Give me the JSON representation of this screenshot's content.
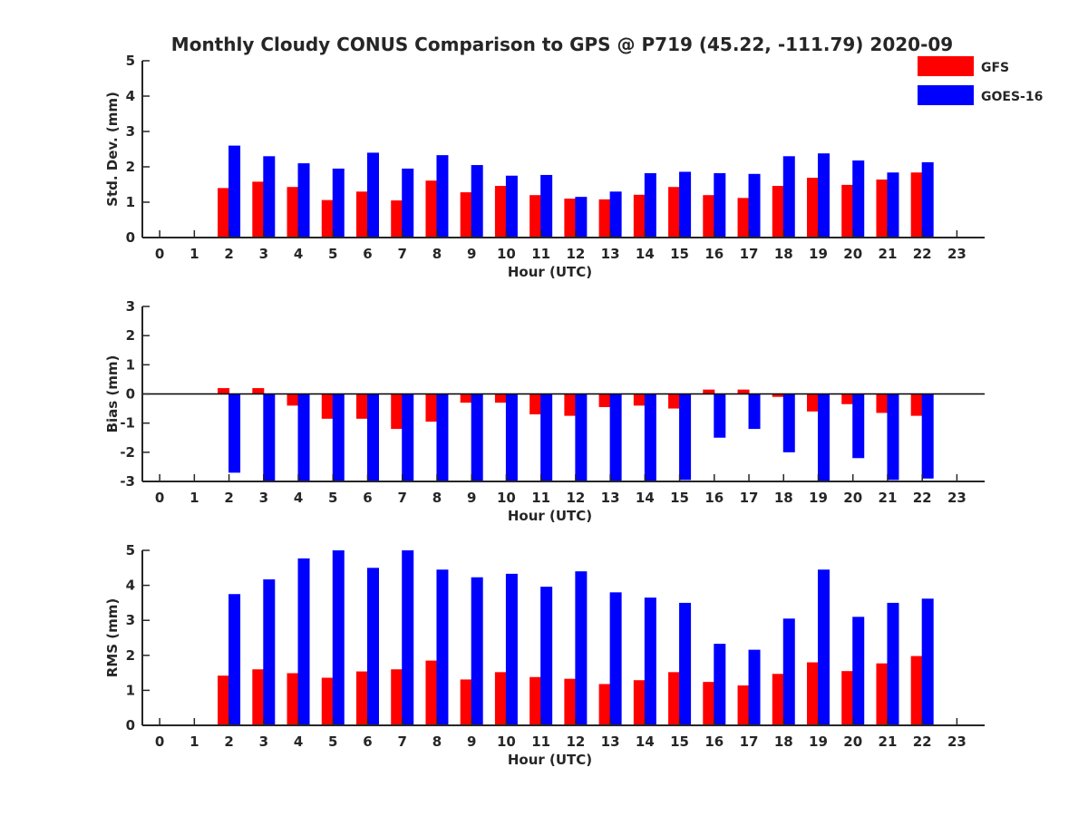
{
  "figure_title": "Monthly Cloudy CONUS Comparison to GPS @ P719 (45.22, -111.79) 2020-09",
  "colors": {
    "GFS": "#ff0000",
    "GOES-16": "#0000ff"
  },
  "legend": {
    "placement": "top-right",
    "entries": [
      "GFS",
      "GOES-16"
    ]
  },
  "chart_data": [
    {
      "type": "bar",
      "title": "Monthly Cloudy CONUS Comparison to GPS @ P719 (45.22, -111.79) 2020-09",
      "xlabel": "Hour (UTC)",
      "ylabel": "Std. Dev. (mm)",
      "ylim": [
        0,
        5
      ],
      "yticks": [
        0,
        1,
        2,
        3,
        4,
        5
      ],
      "xlim": [
        -0.5,
        23.8
      ],
      "categories": [
        0,
        1,
        2,
        3,
        4,
        5,
        6,
        7,
        8,
        9,
        10,
        11,
        12,
        13,
        14,
        15,
        16,
        17,
        18,
        19,
        20,
        21,
        22,
        23
      ],
      "grid": false,
      "zero_line": false,
      "series": [
        {
          "name": "GFS",
          "values": [
            null,
            null,
            1.4,
            1.58,
            1.43,
            1.06,
            1.3,
            1.05,
            1.61,
            1.28,
            1.46,
            1.2,
            1.1,
            1.08,
            1.21,
            1.43,
            1.2,
            1.12,
            1.46,
            1.69,
            1.49,
            1.64,
            1.84,
            null
          ]
        },
        {
          "name": "GOES-16",
          "values": [
            null,
            null,
            2.6,
            2.3,
            2.1,
            1.95,
            2.4,
            1.95,
            2.33,
            2.05,
            1.75,
            1.77,
            1.15,
            1.3,
            1.82,
            1.86,
            1.82,
            1.8,
            2.3,
            2.38,
            2.18,
            1.84,
            2.13,
            null
          ]
        }
      ]
    },
    {
      "type": "bar",
      "xlabel": "Hour (UTC)",
      "ylabel": "Bias (mm)",
      "ylim": [
        -3,
        3
      ],
      "yticks": [
        -3,
        -2,
        -1,
        0,
        1,
        2,
        3
      ],
      "xlim": [
        -0.5,
        23.8
      ],
      "categories": [
        0,
        1,
        2,
        3,
        4,
        5,
        6,
        7,
        8,
        9,
        10,
        11,
        12,
        13,
        14,
        15,
        16,
        17,
        18,
        19,
        20,
        21,
        22,
        23
      ],
      "grid": false,
      "zero_line": true,
      "series": [
        {
          "name": "GFS",
          "values": [
            null,
            null,
            0.2,
            0.2,
            -0.4,
            -0.85,
            -0.85,
            -1.2,
            -0.95,
            -0.3,
            -0.3,
            -0.7,
            -0.75,
            -0.45,
            -0.4,
            -0.5,
            0.15,
            0.15,
            -0.1,
            -0.6,
            -0.35,
            -0.65,
            -0.75,
            null
          ]
        },
        {
          "name": "GOES-16",
          "values": [
            null,
            null,
            -2.7,
            -3.0,
            -3.0,
            -3.0,
            -3.0,
            -3.0,
            -3.0,
            -3.0,
            -3.0,
            -3.0,
            -3.0,
            -3.0,
            -3.0,
            -2.95,
            -1.5,
            -1.2,
            -2.0,
            -3.0,
            -2.2,
            -2.95,
            -2.9,
            null
          ]
        }
      ]
    },
    {
      "type": "bar",
      "xlabel": "Hour (UTC)",
      "ylabel": "RMS (mm)",
      "ylim": [
        0,
        5
      ],
      "yticks": [
        0,
        1,
        2,
        3,
        4,
        5
      ],
      "xlim": [
        -0.5,
        23.8
      ],
      "categories": [
        0,
        1,
        2,
        3,
        4,
        5,
        6,
        7,
        8,
        9,
        10,
        11,
        12,
        13,
        14,
        15,
        16,
        17,
        18,
        19,
        20,
        21,
        22,
        23
      ],
      "grid": false,
      "zero_line": false,
      "series": [
        {
          "name": "GFS",
          "values": [
            null,
            null,
            1.42,
            1.6,
            1.49,
            1.36,
            1.54,
            1.6,
            1.85,
            1.31,
            1.52,
            1.38,
            1.33,
            1.18,
            1.29,
            1.52,
            1.24,
            1.14,
            1.47,
            1.8,
            1.55,
            1.77,
            1.98,
            null
          ]
        },
        {
          "name": "GOES-16",
          "values": [
            null,
            null,
            3.75,
            4.17,
            4.77,
            5.0,
            4.5,
            5.0,
            4.45,
            4.23,
            4.33,
            3.96,
            4.4,
            3.8,
            3.65,
            3.5,
            2.33,
            2.16,
            3.05,
            4.45,
            3.1,
            3.5,
            3.62,
            null
          ]
        }
      ]
    }
  ]
}
